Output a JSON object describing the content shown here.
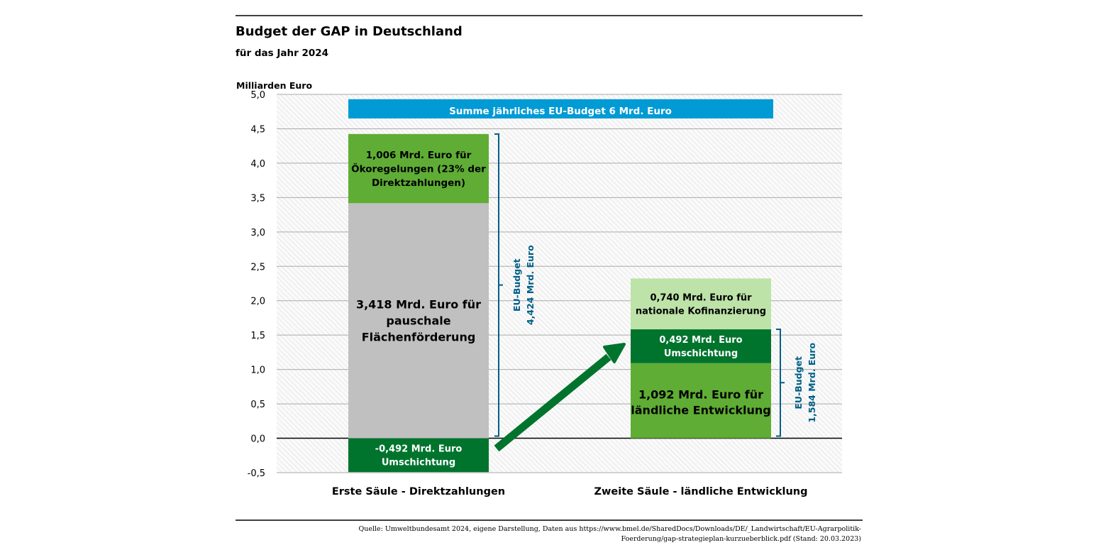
{
  "chart_data": {
    "type": "bar",
    "stacked": true,
    "title": "Budget der GAP in Deutschland",
    "subtitle": "für das Jahr 2024",
    "ylabel": "Milliarden Euro",
    "ylim": [
      -0.5,
      5.0
    ],
    "yticks": [
      5.0,
      4.5,
      4.0,
      3.5,
      3.0,
      2.5,
      2.0,
      1.5,
      1.0,
      0.5,
      0.0,
      -0.5
    ],
    "ytick_labels": [
      "5,0",
      "4,5",
      "4,0",
      "3,5",
      "3,0",
      "2,5",
      "2,0",
      "1,5",
      "1,0",
      "0,5",
      "0,0",
      "-0,5"
    ],
    "grid": true,
    "categories": [
      "Erste Säule - Direktzahlungen",
      "Zweite Säule - ländliche Entwicklung"
    ],
    "series": [
      {
        "category": 0,
        "name": "pauschale Flächenförderung",
        "value": 3.418,
        "color": "#c0c0c0",
        "text_color": "#000000",
        "label": [
          "3,418 Mrd. Euro für",
          "pauschale",
          "Flächenförderung"
        ]
      },
      {
        "category": 0,
        "name": "Ökoregelungen",
        "value": 1.006,
        "color": "#5fad35",
        "text_color": "#000000",
        "label": [
          "1,006 Mrd. Euro für",
          "Ökoregelungen (23% der",
          "Direktzahlungen)"
        ]
      },
      {
        "category": 0,
        "name": "Umschichtung",
        "value": -0.492,
        "color": "#00742d",
        "text_color": "#ffffff",
        "label": [
          "-0,492 Mrd. Euro",
          "Umschichtung"
        ]
      },
      {
        "category": 1,
        "name": "ländliche Entwicklung",
        "value": 1.092,
        "color": "#5fad35",
        "text_color": "#000000",
        "label": [
          "1,092 Mrd. Euro für",
          "ländliche Entwicklung"
        ]
      },
      {
        "category": 1,
        "name": "Umschichtung",
        "value": 0.492,
        "color": "#00742d",
        "text_color": "#ffffff",
        "label": [
          "0,492 Mrd. Euro",
          "Umschichtung"
        ]
      },
      {
        "category": 1,
        "name": "nationale Kofinanzierung",
        "value": 0.74,
        "color": "#bde3a8",
        "text_color": "#000000",
        "label": [
          "0,740 Mrd. Euro für",
          "nationale Kofinanzierung"
        ]
      }
    ],
    "annotations": {
      "eu_total_band": {
        "text": "Summe jährliches EU-Budget 6 Mrd. Euro",
        "color": "#009ad4",
        "range": [
          4.65,
          4.93
        ]
      },
      "brackets": [
        {
          "category": 0,
          "range": [
            0,
            4.424
          ],
          "lines": [
            "EU-Budget",
            "4,424 Mrd. Euro"
          ],
          "color": "#005f86"
        },
        {
          "category": 1,
          "range": [
            0,
            1.584
          ],
          "lines": [
            "EU-Budget",
            "1,584 Mrd. Euro"
          ],
          "color": "#005f86"
        }
      ],
      "arrow": {
        "from": "Erste Säule Umschichtung",
        "to": "Zweite Säule Umschichtung",
        "color": "#00742d"
      }
    },
    "source": [
      "Quelle: Umweltbundesamt 2024, eigene Darstellung, Daten aus https://www.bmel.de/SharedDocs/Downloads/DE/_Landwirtschaft/EU-Agrarpolitik-",
      "Foerderung/gap-strategieplan-kurzueberblick.pdf (Stand: 20.03.2023)"
    ]
  }
}
